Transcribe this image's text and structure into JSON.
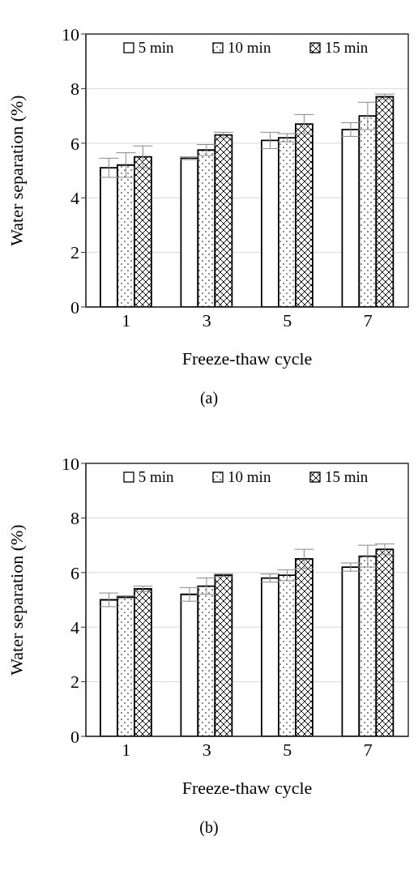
{
  "chart_data": [
    {
      "type": "bar",
      "categories": [
        "1",
        "3",
        "5",
        "7"
      ],
      "xlabel": "Freeze-thaw cycle",
      "ylabel": "Water separation (%)",
      "ylim": [
        0,
        10
      ],
      "yticks": [
        0,
        2,
        4,
        6,
        8,
        10
      ],
      "grid": "y",
      "legend": "top",
      "annotations": [
        "(a)"
      ],
      "series": [
        {
          "name": "5 min",
          "color": "#ffffff",
          "values": [
            5.1,
            5.45,
            6.1,
            6.5
          ],
          "errors": [
            0.35,
            0.05,
            0.3,
            0.25
          ]
        },
        {
          "name": "10 min",
          "color": "#000000",
          "values": [
            5.2,
            5.75,
            6.2,
            7.0
          ],
          "errors": [
            0.45,
            0.2,
            0.15,
            0.5
          ]
        },
        {
          "name": "15 min",
          "color": "#000000",
          "values": [
            5.5,
            6.3,
            6.7,
            7.7
          ],
          "errors": [
            0.4,
            0.1,
            0.35,
            0.1
          ]
        }
      ]
    },
    {
      "type": "bar",
      "categories": [
        "1",
        "3",
        "5",
        "7"
      ],
      "xlabel": "Freeze-thaw cycle",
      "ylabel": "Water separation (%)",
      "ylim": [
        0,
        10
      ],
      "yticks": [
        0,
        2,
        4,
        6,
        8,
        10
      ],
      "grid": "y",
      "legend": "top",
      "annotations": [
        "(b)"
      ],
      "series": [
        {
          "name": "5 min",
          "color": "#ffffff",
          "values": [
            5.0,
            5.2,
            5.8,
            6.2
          ],
          "errors": [
            0.25,
            0.25,
            0.15,
            0.15
          ]
        },
        {
          "name": "10 min",
          "color": "#000000",
          "values": [
            5.1,
            5.5,
            5.9,
            6.6
          ],
          "errors": [
            0.05,
            0.3,
            0.2,
            0.4
          ]
        },
        {
          "name": "15 min",
          "color": "#000000",
          "values": [
            5.4,
            5.9,
            6.5,
            6.85
          ],
          "errors": [
            0.1,
            0.05,
            0.35,
            0.2
          ]
        }
      ]
    }
  ]
}
